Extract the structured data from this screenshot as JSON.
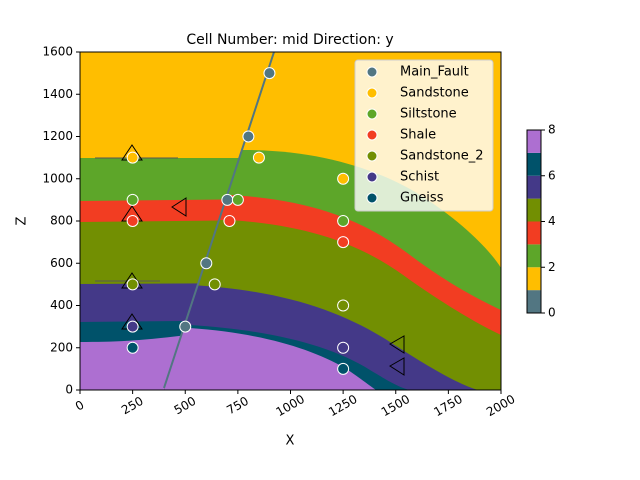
{
  "chart_data": {
    "type": "scatter",
    "title": "Cell Number: mid Direction: y",
    "xlabel": "X",
    "ylabel": "Z",
    "xlim": [
      0,
      2000
    ],
    "ylim": [
      0,
      1600
    ],
    "xticks": [
      0,
      250,
      500,
      750,
      1000,
      1250,
      1500,
      1750,
      2000
    ],
    "yticks": [
      0,
      200,
      400,
      600,
      800,
      1000,
      1200,
      1400,
      1600
    ],
    "legend": "upper right",
    "series": [
      {
        "name": "Main_Fault",
        "color": "#527682",
        "x": [
          900,
          800,
          700,
          600,
          500
        ],
        "values": [
          1500,
          1200,
          900,
          600,
          300
        ]
      },
      {
        "name": "Sandstone",
        "color": "#ffbe00",
        "x": [
          250,
          850,
          1250
        ],
        "values": [
          1100,
          1100,
          1000
        ]
      },
      {
        "name": "Siltstone",
        "color": "#5da629",
        "x": [
          250,
          750,
          1250
        ],
        "values": [
          900,
          900,
          800
        ]
      },
      {
        "name": "Shale",
        "color": "#f23d22",
        "x": [
          250,
          710,
          1250
        ],
        "values": [
          800,
          800,
          700
        ]
      },
      {
        "name": "Sandstone_2",
        "color": "#728f02",
        "x": [
          250,
          640,
          1250
        ],
        "values": [
          500,
          500,
          400
        ]
      },
      {
        "name": "Schist",
        "color": "#443988",
        "x": [
          250,
          1250
        ],
        "values": [
          300,
          200
        ]
      },
      {
        "name": "Gneiss",
        "color": "#00526a",
        "x": [
          250,
          1250
        ],
        "values": [
          200,
          100
        ]
      }
    ],
    "colorbar": {
      "lim": [
        0,
        8
      ],
      "ticks": [
        0,
        2,
        4,
        6,
        8
      ],
      "colors": [
        "#527682",
        "#ffbe00",
        "#5da629",
        "#f23d22",
        "#728f02",
        "#443988",
        "#00526a",
        "#ad6fd1"
      ]
    }
  }
}
